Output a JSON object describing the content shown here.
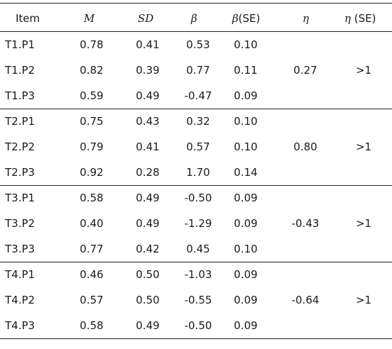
{
  "header": {
    "item": "Item",
    "m": "M",
    "sd": "SD",
    "beta": "β",
    "beta_se_sym": "β",
    "beta_se_suffix": "(SE)",
    "eta": "η",
    "eta_se_sym": "η",
    "eta_se_suffix": " (SE)"
  },
  "groups": [
    {
      "eta": "0.27",
      "eta_se": ">1",
      "rows": [
        {
          "item": "T1.P1",
          "m": "0.78",
          "sd": "0.41",
          "beta": "0.53",
          "beta_se": "0.10"
        },
        {
          "item": "T1.P2",
          "m": "0.82",
          "sd": "0.39",
          "beta": "0.77",
          "beta_se": "0.11"
        },
        {
          "item": "T1.P3",
          "m": "0.59",
          "sd": "0.49",
          "beta": "-0.47",
          "beta_se": "0.09"
        }
      ]
    },
    {
      "eta": "0.80",
      "eta_se": ">1",
      "rows": [
        {
          "item": "T2.P1",
          "m": "0.75",
          "sd": "0.43",
          "beta": "0.32",
          "beta_se": "0.10"
        },
        {
          "item": "T2.P2",
          "m": "0.79",
          "sd": "0.41",
          "beta": "0.57",
          "beta_se": "0.10"
        },
        {
          "item": "T2.P3",
          "m": "0.92",
          "sd": "0.28",
          "beta": "1.70",
          "beta_se": "0.14"
        }
      ]
    },
    {
      "eta": "-0.43",
      "eta_se": ">1",
      "rows": [
        {
          "item": "T3.P1",
          "m": "0.58",
          "sd": "0.49",
          "beta": "-0.50",
          "beta_se": "0.09"
        },
        {
          "item": "T3.P2",
          "m": "0.40",
          "sd": "0.49",
          "beta": "-1.29",
          "beta_se": "0.09"
        },
        {
          "item": "T3.P3",
          "m": "0.77",
          "sd": "0.42",
          "beta": "0.45",
          "beta_se": "0.10"
        }
      ]
    },
    {
      "eta": "-0.64",
      "eta_se": ">1",
      "rows": [
        {
          "item": "T4.P1",
          "m": "0.46",
          "sd": "0.50",
          "beta": "-1.03",
          "beta_se": "0.09"
        },
        {
          "item": "T4.P2",
          "m": "0.57",
          "sd": "0.50",
          "beta": "-0.55",
          "beta_se": "0.09"
        },
        {
          "item": "T4.P3",
          "m": "0.58",
          "sd": "0.49",
          "beta": "-0.50",
          "beta_se": "0.09"
        }
      ]
    }
  ]
}
